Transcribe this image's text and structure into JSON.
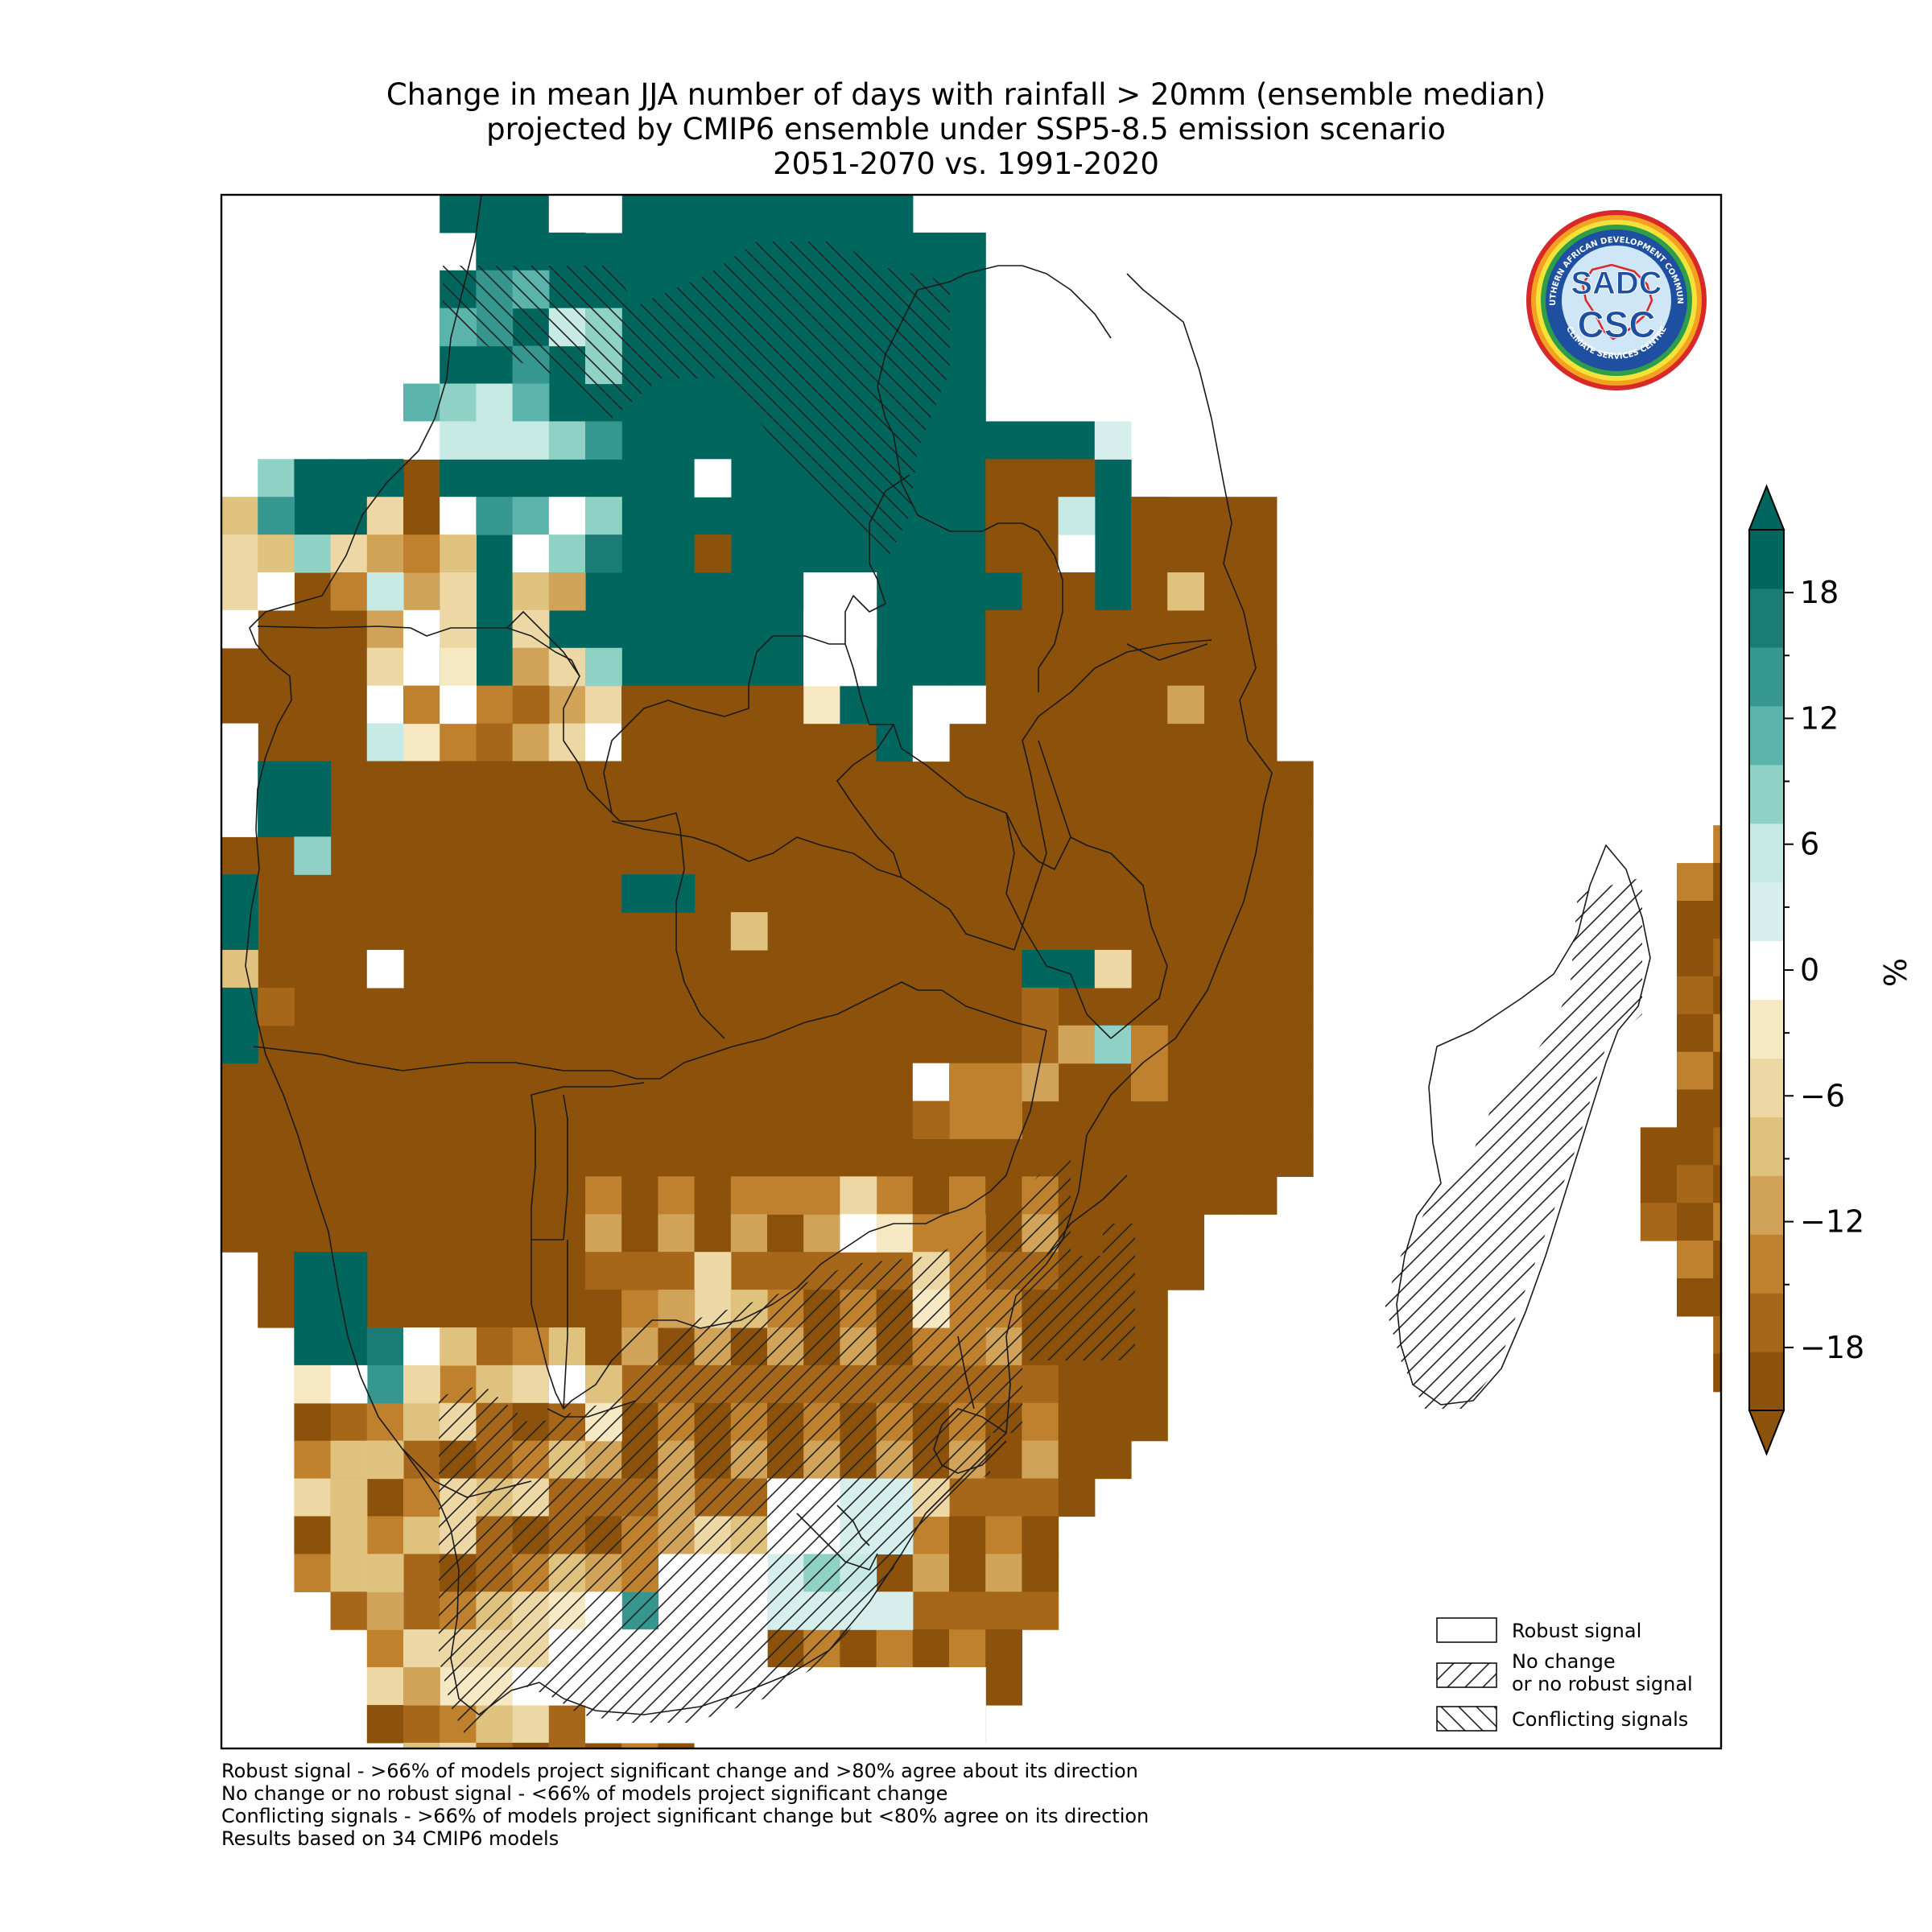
{
  "title": {
    "line1": "Change in mean JJA number of days with rainfall > 20mm (ensemble median)",
    "line2": "projected by CMIP6 ensemble under SSP5-8.5 emission scenario",
    "line3": "2051-2070 vs. 1991-2020"
  },
  "logo": {
    "ring_text_top": "SOUTHERN AFRICAN DEVELOPMENT COMMUNITY",
    "ring_text_bottom": "CLIMATE SERVICES CENTRE",
    "mark_top": "SADC",
    "mark_bottom": "CSC"
  },
  "legend": {
    "items": [
      {
        "label": "Robust signal",
        "hatch": "none"
      },
      {
        "label_line1": "No change",
        "label_line2": "or no robust signal",
        "hatch": "forward"
      },
      {
        "label": "Conflicting signals",
        "hatch": "backward"
      }
    ]
  },
  "colorbar": {
    "unit": "%",
    "range": [
      -21,
      21
    ],
    "extend": "both",
    "tick_labels": [
      "18",
      "12",
      "6",
      "0",
      "−6",
      "−12",
      "−18"
    ],
    "tick_values": [
      18,
      12,
      6,
      0,
      -6,
      -12,
      -18
    ],
    "colors": [
      "#8c510a",
      "#a6671a",
      "#bf812d",
      "#d0a358",
      "#dfc27d",
      "#ecd7a5",
      "#f6e8c3",
      "#ffffff",
      "#d6efec",
      "#c7eae5",
      "#8fd1c5",
      "#5ab4ac",
      "#35978f",
      "#1b7b75",
      "#01665e"
    ]
  },
  "footnotes": {
    "line1": "Robust signal - >66% of models project significant change and >80% agree about its direction",
    "line2": "No change or no robust signal - <66% of models project significant change",
    "line3": "Conflicting signals - >66% of models project significant change but <80% agree on its direction",
    "line4": "Results based on 34 CMIP6 models"
  }
}
